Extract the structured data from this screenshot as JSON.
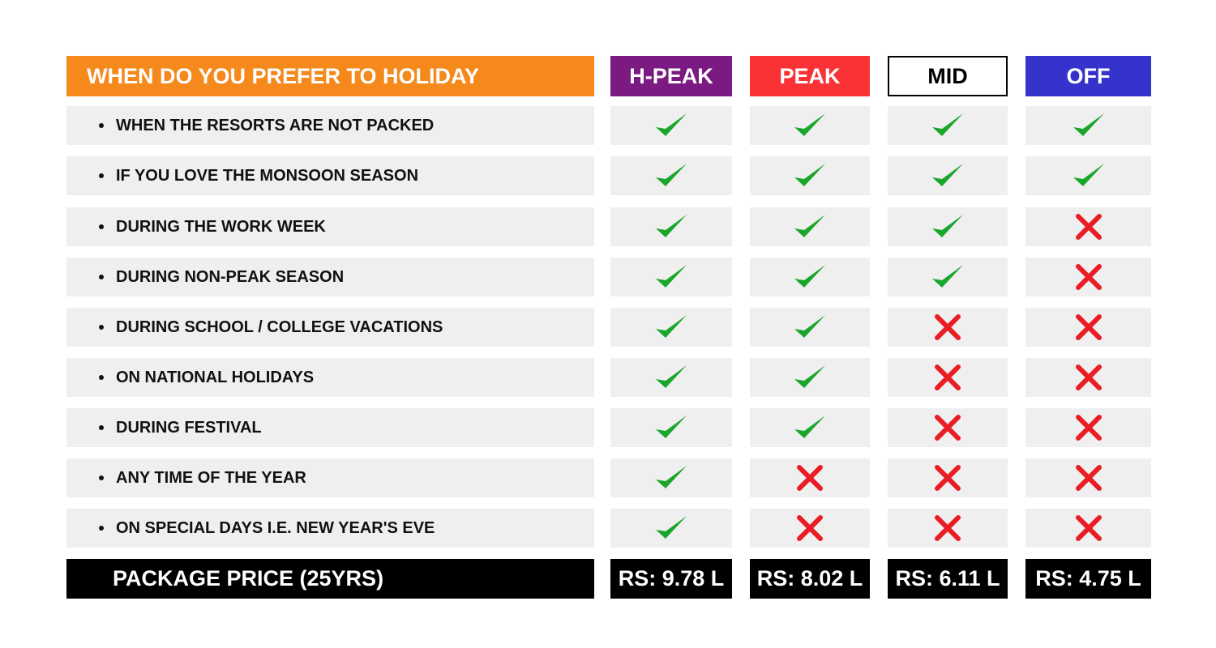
{
  "header": {
    "title": "WHEN DO YOU PREFER TO HOLIDAY",
    "title_color": "#f5891b"
  },
  "columns": [
    {
      "label": "H-PEAK",
      "bg": "#7b1a82",
      "fg": "#ffffff",
      "price": "RS: 9.78 L"
    },
    {
      "label": "PEAK",
      "bg": "#fa3236",
      "fg": "#ffffff",
      "price": "RS: 8.02 L"
    },
    {
      "label": "MID",
      "bg": "#ffffff",
      "fg": "#000000",
      "price": "RS: 6.11 L"
    },
    {
      "label": "OFF",
      "bg": "#3632cc",
      "fg": "#ffffff",
      "price": "RS: 4.75 L"
    }
  ],
  "rows": [
    {
      "label": "WHEN THE RESORTS ARE NOT PACKED",
      "marks": [
        "check",
        "check",
        "check",
        "check"
      ]
    },
    {
      "label": "IF YOU LOVE THE MONSOON SEASON",
      "marks": [
        "check",
        "check",
        "check",
        "check"
      ]
    },
    {
      "label": "DURING THE WORK WEEK",
      "marks": [
        "check",
        "check",
        "check",
        "cross"
      ]
    },
    {
      "label": "DURING NON-PEAK SEASON",
      "marks": [
        "check",
        "check",
        "check",
        "cross"
      ]
    },
    {
      "label": "DURING SCHOOL / COLLEGE VACATIONS",
      "marks": [
        "check",
        "check",
        "cross",
        "cross"
      ]
    },
    {
      "label": "ON NATIONAL HOLIDAYS",
      "marks": [
        "check",
        "check",
        "cross",
        "cross"
      ]
    },
    {
      "label": "DURING FESTIVAL",
      "marks": [
        "check",
        "check",
        "cross",
        "cross"
      ]
    },
    {
      "label": "ANY TIME OF THE YEAR",
      "marks": [
        "check",
        "cross",
        "cross",
        "cross"
      ]
    },
    {
      "label": "ON SPECIAL DAYS I.E. NEW YEAR'S EVE",
      "marks": [
        "check",
        "cross",
        "cross",
        "cross"
      ]
    }
  ],
  "footer": {
    "label": "PACKAGE PRICE (25YRS)"
  },
  "icon_colors": {
    "check": "#1aa52b",
    "cross": "#ea1c24"
  }
}
